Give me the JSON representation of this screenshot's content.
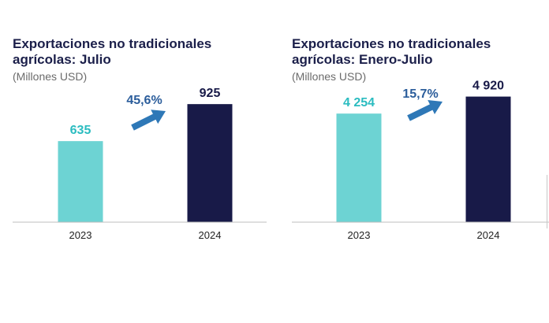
{
  "charts": [
    {
      "title_line1": "Exportaciones no tradicionales",
      "title_line2": "agrícolas: Julio",
      "unit": "(Millones USD)",
      "growth_label": "45,6%"
    },
    {
      "title_line1": "Exportaciones no tradicionales",
      "title_line2": "agrícolas: Enero-Julio",
      "unit": "(Millones USD)",
      "growth_label": "15,7%"
    }
  ],
  "colors": {
    "bar_2023": "#6dd3d3",
    "bar_2024": "#181a48",
    "label_2023": "#2bbcc0",
    "label_2024": "#181a48",
    "arrow": "#2e78b7",
    "growth_text": "#2b5d9b",
    "title": "#1b1f4a"
  },
  "chart_data": [
    {
      "type": "bar",
      "title": "Exportaciones no tradicionales agrícolas: Julio",
      "ylabel": "(Millones USD)",
      "categories": [
        "2023",
        "2024"
      ],
      "values": [
        635,
        925
      ],
      "value_labels": [
        "635",
        "925"
      ],
      "annotation": "45,6%",
      "ylim": [
        0,
        1000
      ],
      "grid": false,
      "legend": "none"
    },
    {
      "type": "bar",
      "title": "Exportaciones no tradicionales agrícolas: Enero-Julio",
      "ylabel": "(Millones USD)",
      "categories": [
        "2023",
        "2024"
      ],
      "values": [
        4254,
        4920
      ],
      "value_labels": [
        "4 254",
        "4 920"
      ],
      "annotation": "15,7%",
      "ylim": [
        0,
        5000
      ],
      "grid": false,
      "legend": "none"
    }
  ]
}
